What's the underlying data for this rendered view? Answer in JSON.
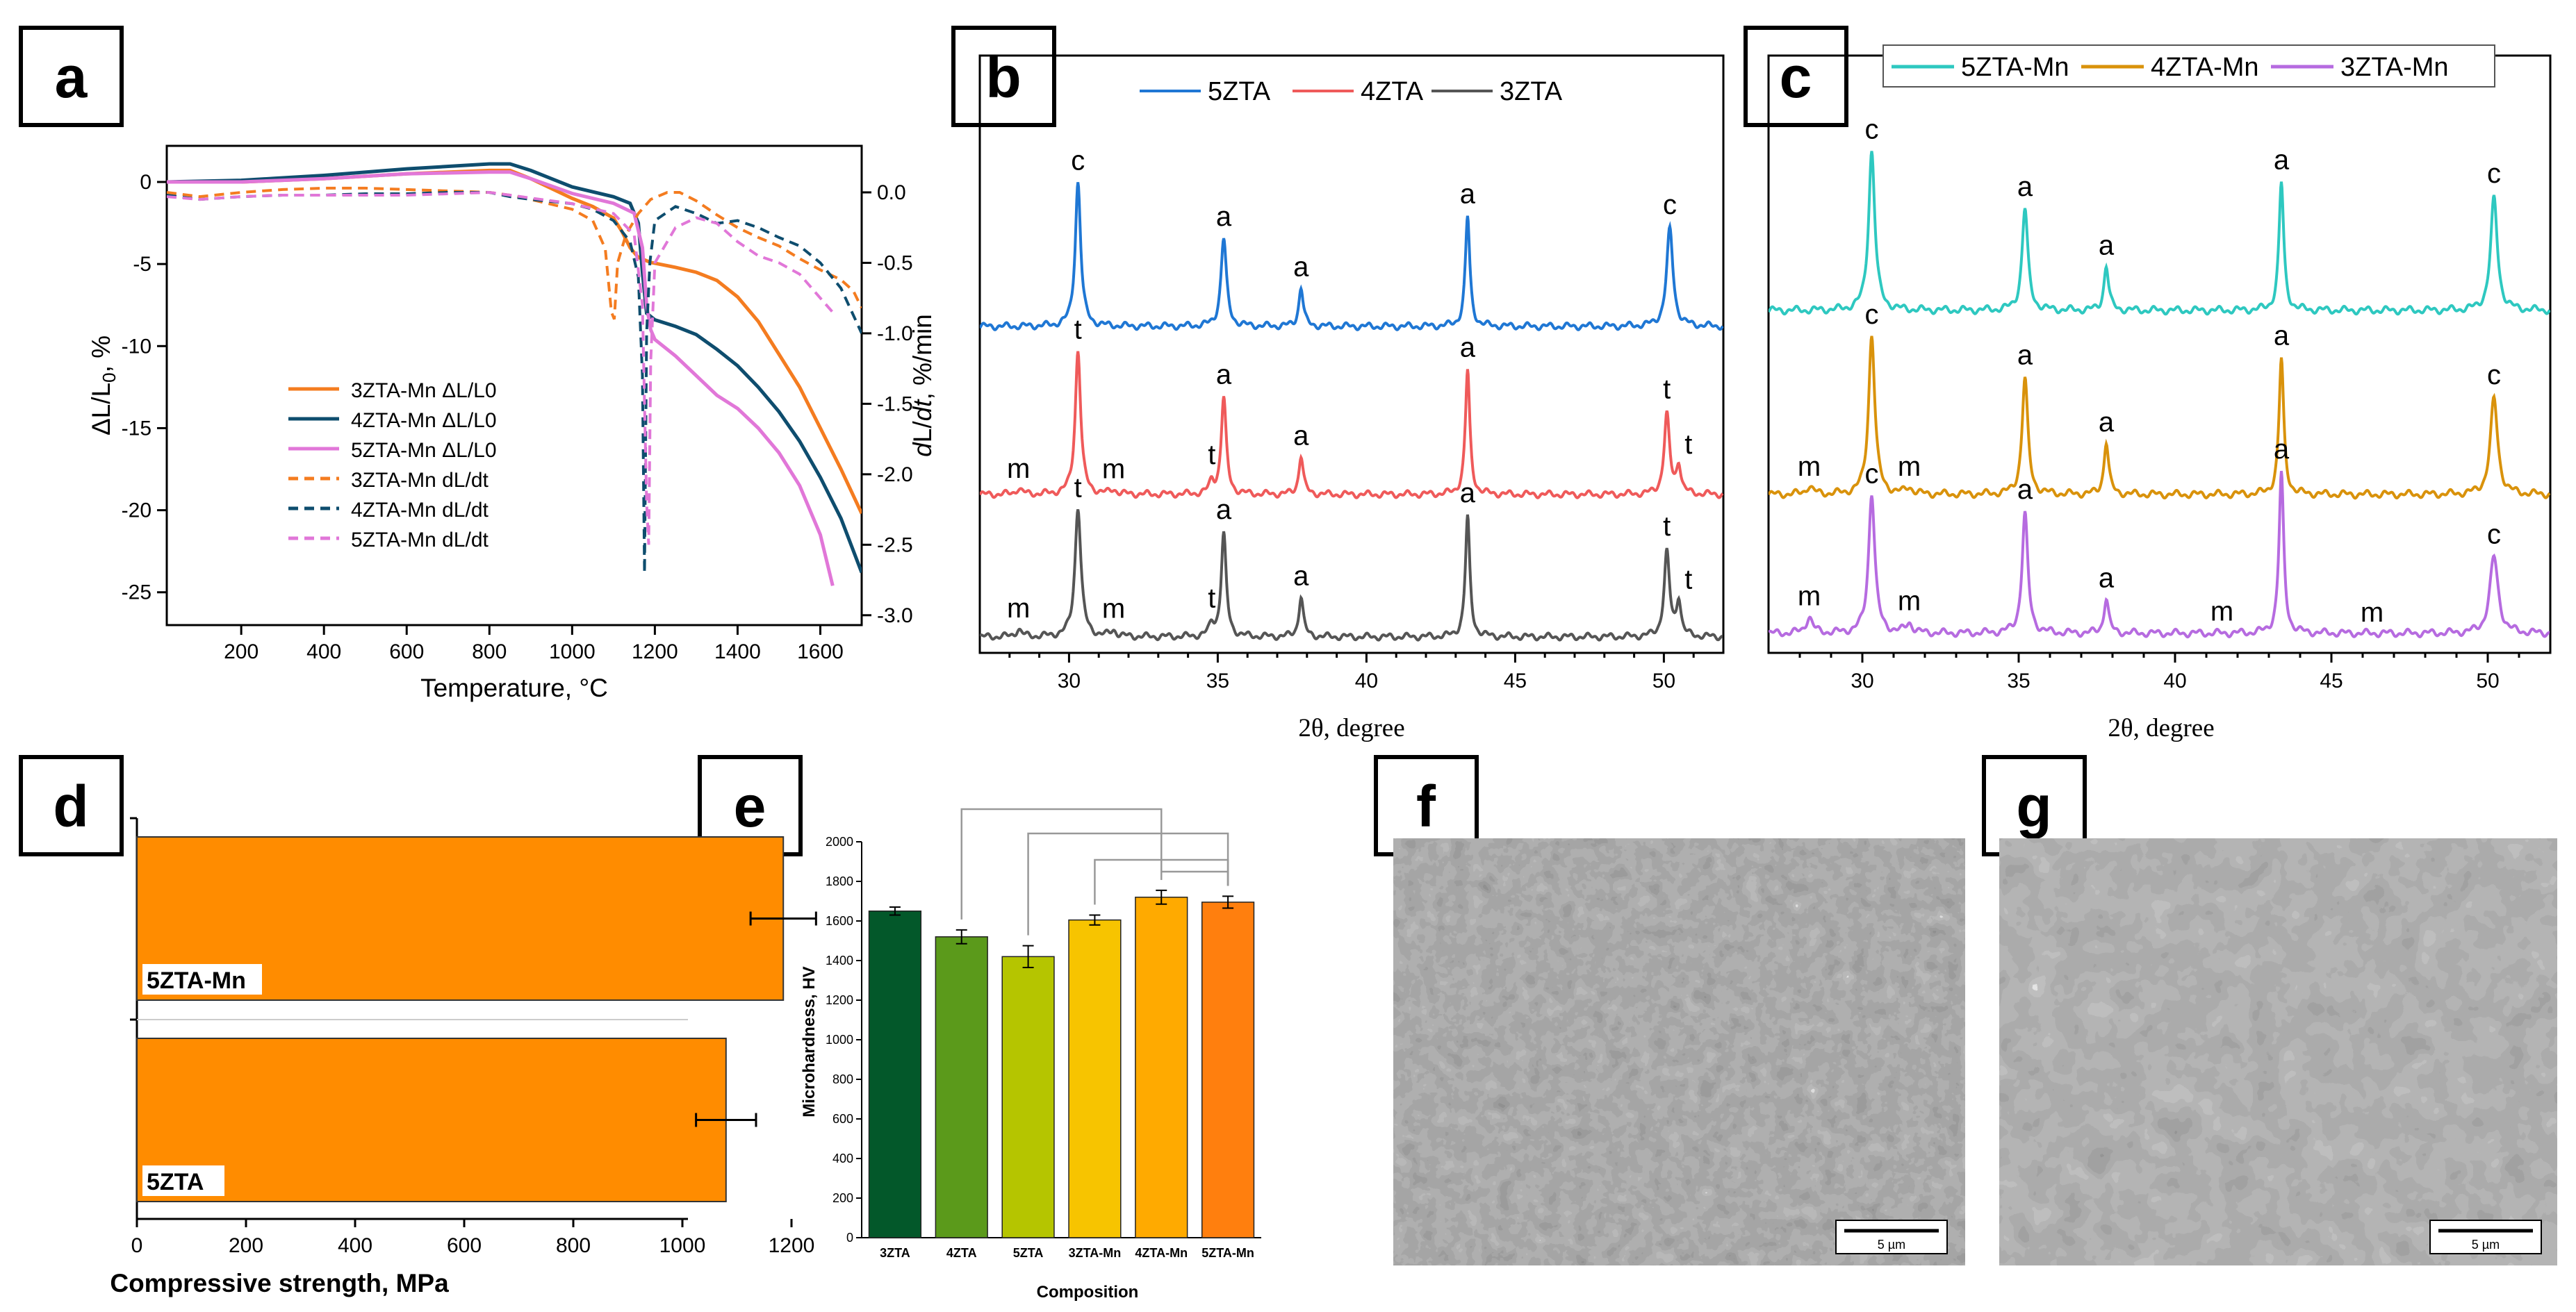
{
  "panel_labels": [
    "a",
    "b",
    "c",
    "d",
    "e",
    "f",
    "g"
  ],
  "colors": {
    "3ZTA-Mn": "#f47c20",
    "4ZTA-Mn": "#0e4d6e",
    "5ZTA-Mn": "#e177d8",
    "5ZTA": "#1f77d4",
    "4ZTA": "#ef5a5a",
    "3ZTA": "#555555",
    "c5Mn": "#2ec8c0",
    "c4Mn": "#d9920b",
    "c3Mn": "#b66be0",
    "orange_bar": "#ff8c00"
  },
  "chart_data": [
    {
      "id": "a",
      "type": "line",
      "title": "",
      "xlabel": "Temperature, °C",
      "ylabel": "ΔL/L0, %",
      "ylabel_right": "dL/dt, %/min",
      "xlim": [
        20,
        1700
      ],
      "ylim": [
        -27,
        2.2
      ],
      "ylim_right": [
        -3.07,
        0.33
      ],
      "x_ticks": [
        200,
        400,
        600,
        800,
        1000,
        1200,
        1400,
        1600
      ],
      "y_ticks": [
        0,
        -5,
        -10,
        -15,
        -20,
        -25
      ],
      "y_ticks_right": [
        "0.0",
        "-0.5",
        "-1.0",
        "-1.5",
        "-2.0",
        "-2.5",
        "-3.0"
      ],
      "legend": [
        "3ZTA-Mn ΔL/L0",
        "4ZTA-Mn ΔL/L0",
        "5ZTA-Mn ΔL/L0",
        "3ZTA-Mn dL/dt",
        "4ZTA-Mn dL/dt",
        "5ZTA-Mn dL/dt"
      ],
      "series": [
        {
          "name": "3ZTA-Mn ΔL/L0",
          "axis": "left",
          "style": "solid",
          "x": [
            20,
            200,
            400,
            600,
            800,
            850,
            900,
            1000,
            1050,
            1100,
            1120,
            1140,
            1160,
            1190,
            1250,
            1300,
            1350,
            1400,
            1450,
            1500,
            1550,
            1600,
            1650,
            1700
          ],
          "y": [
            0,
            0,
            0.2,
            0.5,
            0.7,
            0.7,
            0.2,
            -1,
            -1.5,
            -2.2,
            -3,
            -4,
            -4.6,
            -4.9,
            -5.2,
            -5.5,
            -6,
            -7,
            -8.5,
            -10.5,
            -12.5,
            -15,
            -17.5,
            -20.2
          ]
        },
        {
          "name": "4ZTA-Mn ΔL/L0",
          "axis": "left",
          "style": "solid",
          "x": [
            20,
            200,
            400,
            600,
            800,
            850,
            900,
            1000,
            1100,
            1140,
            1160,
            1170,
            1180,
            1200,
            1250,
            1300,
            1350,
            1400,
            1450,
            1500,
            1550,
            1600,
            1650,
            1700
          ],
          "y": [
            0,
            0.1,
            0.4,
            0.8,
            1.1,
            1.1,
            0.7,
            -0.3,
            -0.9,
            -1.3,
            -2.5,
            -5.5,
            -8,
            -8.4,
            -8.8,
            -9.3,
            -10.2,
            -11.2,
            -12.5,
            -14,
            -15.8,
            -18,
            -20.5,
            -23.8
          ]
        },
        {
          "name": "5ZTA-Mn ΔL/L0",
          "axis": "left",
          "style": "solid",
          "x": [
            20,
            200,
            400,
            600,
            800,
            850,
            900,
            1000,
            1100,
            1150,
            1170,
            1180,
            1190,
            1200,
            1250,
            1300,
            1350,
            1400,
            1450,
            1500,
            1550,
            1600,
            1630
          ],
          "y": [
            0,
            0,
            0.2,
            0.5,
            0.6,
            0.6,
            0.2,
            -0.7,
            -1.3,
            -1.9,
            -4,
            -7.5,
            -9,
            -9.6,
            -10.6,
            -11.8,
            -13,
            -13.8,
            -15,
            -16.5,
            -18.5,
            -21.5,
            -24.6
          ]
        },
        {
          "name": "3ZTA-Mn dL/dt",
          "axis": "right",
          "style": "dashed",
          "x": [
            20,
            100,
            200,
            300,
            400,
            500,
            600,
            700,
            800,
            850,
            900,
            1000,
            1050,
            1080,
            1095,
            1102,
            1110,
            1130,
            1160,
            1190,
            1230,
            1260,
            1300,
            1350,
            1400,
            1450,
            1500,
            1550,
            1600,
            1650,
            1680,
            1700
          ],
          "y": [
            0,
            -0.03,
            0,
            0.02,
            0.03,
            0.03,
            0.02,
            0.01,
            0,
            -0.02,
            -0.05,
            -0.12,
            -0.2,
            -0.4,
            -0.85,
            -0.9,
            -0.5,
            -0.3,
            -0.15,
            -0.05,
            0.0,
            0.0,
            -0.06,
            -0.16,
            -0.25,
            -0.32,
            -0.38,
            -0.47,
            -0.55,
            -0.62,
            -0.7,
            -0.82
          ]
        },
        {
          "name": "4ZTA-Mn dL/dt",
          "axis": "right",
          "style": "dashed",
          "x": [
            20,
            100,
            200,
            300,
            400,
            500,
            600,
            700,
            800,
            850,
            900,
            1000,
            1050,
            1100,
            1140,
            1160,
            1170,
            1175,
            1180,
            1188,
            1200,
            1250,
            1300,
            1350,
            1400,
            1450,
            1500,
            1550,
            1600,
            1650,
            1700
          ],
          "y": [
            -0.02,
            -0.05,
            -0.03,
            -0.02,
            -0.02,
            -0.01,
            -0.01,
            0,
            0,
            -0.03,
            -0.05,
            -0.08,
            -0.12,
            -0.2,
            -0.35,
            -0.6,
            -1.3,
            -2.7,
            -1.0,
            -0.5,
            -0.2,
            -0.1,
            -0.15,
            -0.22,
            -0.2,
            -0.25,
            -0.32,
            -0.38,
            -0.5,
            -0.68,
            -1.0
          ]
        },
        {
          "name": "5ZTA-Mn dL/dt",
          "axis": "right",
          "style": "dashed",
          "x": [
            20,
            100,
            200,
            300,
            400,
            500,
            600,
            700,
            800,
            850,
            900,
            1000,
            1100,
            1150,
            1170,
            1180,
            1185,
            1190,
            1200,
            1250,
            1300,
            1350,
            1400,
            1450,
            1500,
            1550,
            1600,
            1630
          ],
          "y": [
            -0.03,
            -0.05,
            -0.03,
            -0.02,
            -0.02,
            -0.02,
            -0.02,
            -0.01,
            0,
            -0.02,
            -0.04,
            -0.08,
            -0.15,
            -0.3,
            -0.8,
            -2.2,
            -2.5,
            -1.2,
            -0.5,
            -0.25,
            -0.18,
            -0.22,
            -0.35,
            -0.45,
            -0.5,
            -0.58,
            -0.75,
            -0.85
          ]
        }
      ]
    },
    {
      "id": "b",
      "type": "line",
      "xlabel": "2θ, degree",
      "xlim": [
        27,
        52
      ],
      "x_ticks": [
        30,
        35,
        40,
        45,
        50
      ],
      "legend": [
        "5ZTA",
        "4ZTA",
        "3ZTA"
      ],
      "series": [
        {
          "name": "5ZTA",
          "peaks": [
            {
              "pos": 30.3,
              "h": 1.0,
              "w": 0.11,
              "label": "c"
            },
            {
              "pos": 35.2,
              "h": 0.61,
              "w": 0.11,
              "label": "a"
            },
            {
              "pos": 37.8,
              "h": 0.27,
              "w": 0.09,
              "label": "a"
            },
            {
              "pos": 43.4,
              "h": 0.76,
              "w": 0.09,
              "label": "a"
            },
            {
              "pos": 50.2,
              "h": 0.67,
              "w": 0.13,
              "label": "c"
            }
          ]
        },
        {
          "name": "4ZTA",
          "peaks": [
            {
              "pos": 28.3,
              "h": 0.04,
              "w": 0.12,
              "label": "m"
            },
            {
              "pos": 30.3,
              "h": 1.0,
              "w": 0.11,
              "label": "t"
            },
            {
              "pos": 31.5,
              "h": 0.03,
              "w": 0.12,
              "label": "m"
            },
            {
              "pos": 34.8,
              "h": 0.08,
              "w": 0.1,
              "label": "t"
            },
            {
              "pos": 35.2,
              "h": 0.67,
              "w": 0.1,
              "label": "a"
            },
            {
              "pos": 37.8,
              "h": 0.27,
              "w": 0.09,
              "label": "a"
            },
            {
              "pos": 43.4,
              "h": 0.86,
              "w": 0.09,
              "label": "a"
            },
            {
              "pos": 50.1,
              "h": 0.55,
              "w": 0.11,
              "label": "t"
            },
            {
              "pos": 50.5,
              "h": 0.2,
              "w": 0.09,
              "label": "t"
            }
          ]
        },
        {
          "name": "3ZTA",
          "peaks": [
            {
              "pos": 28.3,
              "h": 0.05,
              "w": 0.12,
              "label": "m"
            },
            {
              "pos": 30.3,
              "h": 0.9,
              "w": 0.12,
              "label": "t"
            },
            {
              "pos": 31.5,
              "h": 0.04,
              "w": 0.12,
              "label": "m"
            },
            {
              "pos": 34.8,
              "h": 0.08,
              "w": 0.1,
              "label": "t"
            },
            {
              "pos": 35.2,
              "h": 0.71,
              "w": 0.1,
              "label": "a"
            },
            {
              "pos": 37.8,
              "h": 0.28,
              "w": 0.09,
              "label": "a"
            },
            {
              "pos": 43.4,
              "h": 0.83,
              "w": 0.09,
              "label": "a"
            },
            {
              "pos": 50.1,
              "h": 0.58,
              "w": 0.11,
              "label": "t"
            },
            {
              "pos": 50.5,
              "h": 0.25,
              "w": 0.09,
              "label": "t"
            }
          ]
        }
      ]
    },
    {
      "id": "c",
      "type": "line",
      "xlabel": "2θ, degree",
      "xlim": [
        27,
        52
      ],
      "x_ticks": [
        30,
        35,
        40,
        45,
        50
      ],
      "legend": [
        "5ZTA-Mn",
        "4ZTA-Mn",
        "3ZTA-Mn"
      ],
      "series": [
        {
          "name": "5ZTA-Mn",
          "peaks": [
            {
              "pos": 30.3,
              "h": 1.0,
              "w": 0.12,
              "label": "c"
            },
            {
              "pos": 35.2,
              "h": 0.64,
              "w": 0.11,
              "label": "a"
            },
            {
              "pos": 37.8,
              "h": 0.28,
              "w": 0.09,
              "label": "a"
            },
            {
              "pos": 43.4,
              "h": 0.8,
              "w": 0.09,
              "label": "a"
            },
            {
              "pos": 50.2,
              "h": 0.7,
              "w": 0.13,
              "label": "c"
            }
          ]
        },
        {
          "name": "4ZTA-Mn",
          "peaks": [
            {
              "pos": 28.3,
              "h": 0.05,
              "w": 0.13,
              "label": "m"
            },
            {
              "pos": 30.3,
              "h": 1.0,
              "w": 0.12,
              "label": "c"
            },
            {
              "pos": 31.5,
              "h": 0.04,
              "w": 0.13,
              "label": "m"
            },
            {
              "pos": 35.2,
              "h": 0.73,
              "w": 0.11,
              "label": "a"
            },
            {
              "pos": 37.8,
              "h": 0.33,
              "w": 0.09,
              "label": "a"
            },
            {
              "pos": 43.4,
              "h": 0.85,
              "w": 0.09,
              "label": "a"
            },
            {
              "pos": 50.2,
              "h": 0.6,
              "w": 0.14,
              "label": "c"
            }
          ]
        },
        {
          "name": "3ZTA-Mn",
          "peaks": [
            {
              "pos": 28.3,
              "h": 0.1,
              "w": 0.13,
              "label": "m"
            },
            {
              "pos": 30.3,
              "h": 0.88,
              "w": 0.12,
              "label": "c"
            },
            {
              "pos": 31.5,
              "h": 0.06,
              "w": 0.13,
              "label": "m"
            },
            {
              "pos": 35.2,
              "h": 0.75,
              "w": 0.11,
              "label": "a"
            },
            {
              "pos": 37.8,
              "h": 0.22,
              "w": 0.09,
              "label": "a"
            },
            {
              "pos": 41.5,
              "h": 0.0,
              "w": 0.1,
              "label": "m"
            },
            {
              "pos": 43.4,
              "h": 1.0,
              "w": 0.09,
              "label": "a"
            },
            {
              "pos": 46.3,
              "h": 0.0,
              "w": 0.1,
              "label": "m"
            },
            {
              "pos": 50.2,
              "h": 0.48,
              "w": 0.16,
              "label": "c"
            }
          ]
        }
      ]
    },
    {
      "id": "d",
      "type": "bar",
      "orientation": "horizontal",
      "categories": [
        "5ZTA-Mn",
        "5ZTA"
      ],
      "values": [
        1185,
        1080
      ],
      "errors": [
        60,
        55
      ],
      "xlabel": "Compressive strength, MPa",
      "xlim": [
        0,
        1300
      ],
      "x_ticks": [
        0,
        200,
        400,
        600,
        800,
        1000,
        1200
      ]
    },
    {
      "id": "e",
      "type": "bar",
      "categories": [
        "3ZTA",
        "4ZTA",
        "5ZTA",
        "3ZTA-Mn",
        "4ZTA-Mn",
        "5ZTA-Mn"
      ],
      "values": [
        1650,
        1520,
        1420,
        1605,
        1720,
        1695
      ],
      "errors": [
        20,
        35,
        55,
        25,
        35,
        30
      ],
      "bar_colors": [
        "#03582a",
        "#5b9a1b",
        "#b5c500",
        "#f7c400",
        "#ffaa00",
        "#ff7f0e"
      ],
      "xlabel": "Composition",
      "ylabel": "Microhardness, HV",
      "ylim": [
        0,
        2000
      ],
      "y_ticks": [
        0,
        200,
        400,
        600,
        800,
        1000,
        1200,
        1400,
        1600,
        1800,
        2000
      ],
      "significance": [
        [
          "4ZTA",
          "4ZTA-Mn"
        ],
        [
          "5ZTA",
          "5ZTA-Mn"
        ],
        [
          "3ZTA-Mn",
          "5ZTA-Mn"
        ],
        [
          "4ZTA-Mn",
          "5ZTA-Mn"
        ]
      ]
    }
  ],
  "sem_images": {
    "f": {
      "scale_label": "5 µm"
    },
    "g": {
      "scale_label": "5 µm"
    }
  }
}
